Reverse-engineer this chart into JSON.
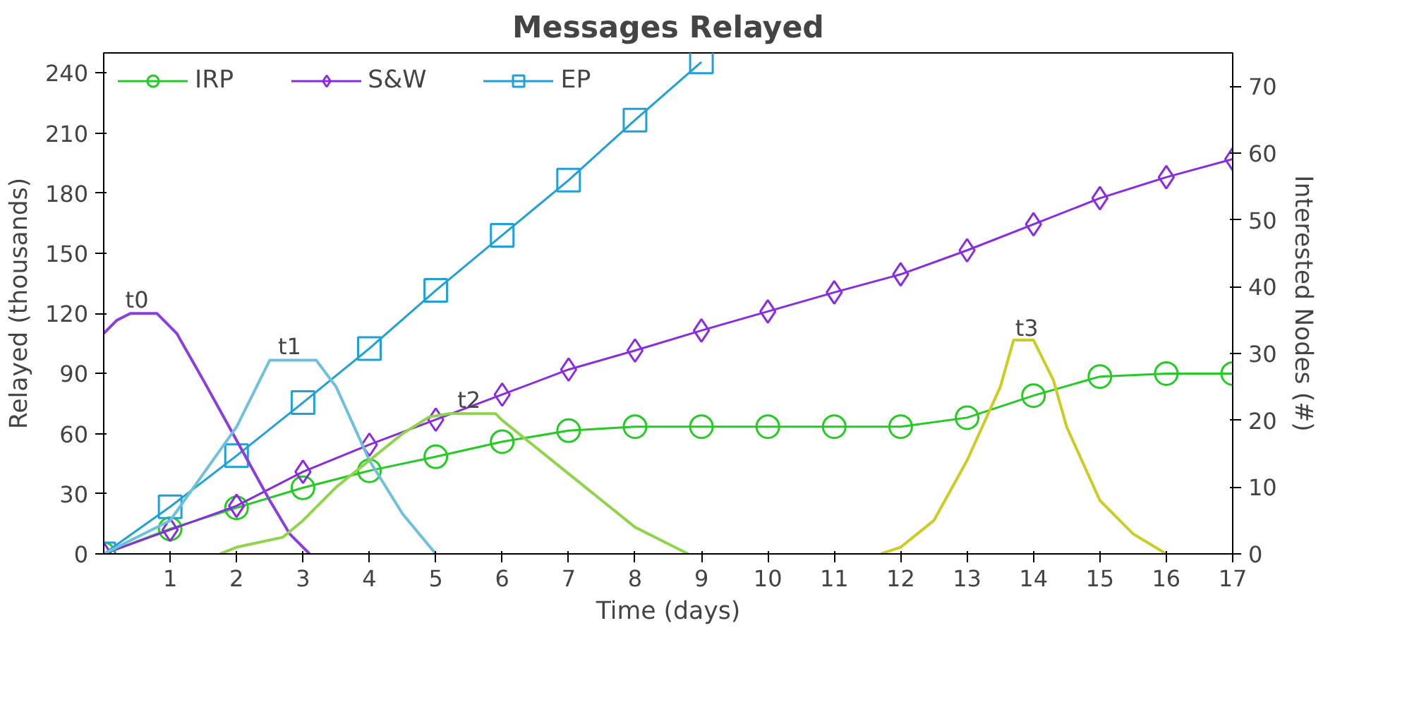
{
  "chart_data": {
    "type": "line",
    "title": "Messages Relayed",
    "xlabel": "Time (days)",
    "ylabel": "Relayed (thousands)",
    "y2label": "Interested Nodes (#)",
    "xlim": [
      0,
      17
    ],
    "xticks": [
      1,
      2,
      3,
      4,
      5,
      6,
      7,
      8,
      9,
      10,
      11,
      12,
      13,
      14,
      15,
      16,
      17
    ],
    "ylim": [
      0,
      250
    ],
    "yticks": [
      0,
      30,
      60,
      90,
      120,
      150,
      180,
      210,
      240
    ],
    "y2lim": [
      0,
      75
    ],
    "y2ticks": [
      0,
      10,
      20,
      30,
      40,
      50,
      60,
      70
    ],
    "grid": false,
    "legend": "top",
    "series": [
      {
        "name": "IRP",
        "color": "#22cc22",
        "marker": "circle",
        "x": [
          0,
          1,
          2,
          3,
          4,
          5,
          6,
          7,
          8,
          9,
          10,
          11,
          12,
          13,
          14,
          15,
          16,
          17
        ],
        "values": [
          0,
          12.5,
          23,
          33,
          41.5,
          48.5,
          56,
          61.5,
          63.5,
          63.5,
          63.5,
          63.5,
          63.5,
          68,
          79,
          88.5,
          90,
          90
        ]
      },
      {
        "name": "S&W",
        "color": "#8a2be2",
        "marker": "diamond",
        "x": [
          0,
          1,
          2,
          3,
          4,
          5,
          6,
          7,
          8,
          9,
          10,
          11,
          12,
          13,
          14,
          15,
          16,
          17
        ],
        "values": [
          0,
          12,
          24,
          41,
          54.5,
          67,
          79.5,
          92,
          101.5,
          111.5,
          121,
          130.5,
          139.5,
          151.5,
          164.5,
          177.5,
          188,
          197
        ]
      },
      {
        "name": "EP",
        "color": "#1fa0d8",
        "marker": "square",
        "x": [
          0,
          1,
          2,
          3,
          4,
          5,
          6,
          7,
          8,
          9
        ],
        "values": [
          0,
          23.5,
          49,
          75.5,
          102.5,
          131.5,
          159,
          186.5,
          216.5,
          245.5
        ]
      },
      {
        "color": "#8a3ee0",
        "axis": "y2",
        "marker": "none",
        "x": [
          0,
          0.2,
          0.4,
          0.8,
          1.1,
          1.5,
          2,
          2.5,
          2.8,
          3.1
        ],
        "values": [
          33,
          35,
          36,
          36,
          33,
          26,
          17,
          8,
          3,
          0
        ]
      },
      {
        "color": "#6ec0dc",
        "axis": "y2",
        "marker": "none",
        "x": [
          0,
          1,
          1.5,
          2,
          2.3,
          2.5,
          3.2,
          3.5,
          4,
          4.5,
          5
        ],
        "values": [
          0,
          5,
          12,
          19,
          25,
          29,
          29,
          25,
          14,
          6,
          0
        ]
      },
      {
        "color": "#8fd44a",
        "axis": "y2",
        "marker": "none",
        "x": [
          1.75,
          2,
          2.7,
          3,
          3.5,
          4,
          4.5,
          4.9,
          5.2,
          5.9,
          6,
          6.5,
          7,
          7.5,
          8,
          8.5,
          8.8
        ],
        "values": [
          0,
          1,
          2.5,
          5,
          10,
          14,
          18,
          20.5,
          21,
          21,
          20,
          16,
          12,
          8,
          4,
          1.5,
          0
        ]
      },
      {
        "color": "#cccc22",
        "axis": "y2",
        "marker": "none",
        "x": [
          11.7,
          12,
          12.5,
          13,
          13.5,
          13.7,
          14,
          14.3,
          14.5,
          15,
          15.5,
          16
        ],
        "values": [
          0,
          1,
          5,
          14,
          25,
          32,
          32,
          26,
          19,
          8,
          3,
          0
        ]
      }
    ],
    "annotations": [
      {
        "text": "t0",
        "x": 0.5,
        "y": 120
      },
      {
        "text": "t1",
        "x": 2.8,
        "y": 97
      },
      {
        "text": "t2",
        "x": 5.5,
        "y": 70
      },
      {
        "text": "t3",
        "x": 13.9,
        "y": 106
      }
    ]
  }
}
